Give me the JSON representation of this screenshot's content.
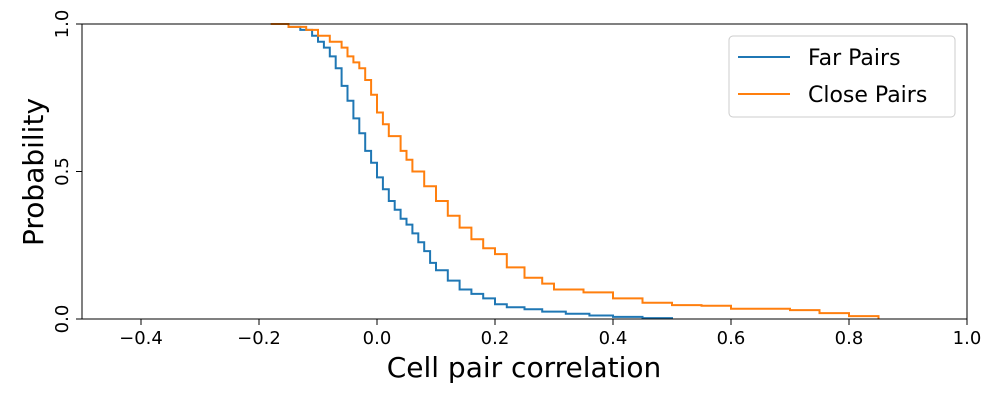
{
  "chart_data": {
    "type": "line",
    "xlabel": "Cell pair correlation",
    "ylabel": "Probability",
    "xlim": [
      -0.5,
      1.0
    ],
    "ylim": [
      0.0,
      1.0
    ],
    "xticks": [
      -0.4,
      -0.2,
      0.0,
      0.2,
      0.4,
      0.6,
      0.8,
      1.0
    ],
    "xtick_labels": [
      "−0.4",
      "−0.2",
      "0.0",
      "0.2",
      "0.4",
      "0.6",
      "0.8",
      "1.0"
    ],
    "yticks": [
      0.0,
      0.5,
      1.0
    ],
    "ytick_labels": [
      "0.0",
      "0.5",
      "1.0"
    ],
    "grid": false,
    "legend_position": "top-right",
    "series": [
      {
        "name": "Far Pairs",
        "color": "#1f77b4",
        "x": [
          -0.18,
          -0.15,
          -0.13,
          -0.11,
          -0.1,
          -0.09,
          -0.08,
          -0.07,
          -0.06,
          -0.05,
          -0.04,
          -0.03,
          -0.02,
          -0.01,
          0.0,
          0.01,
          0.02,
          0.03,
          0.04,
          0.05,
          0.06,
          0.07,
          0.08,
          0.09,
          0.1,
          0.12,
          0.14,
          0.16,
          0.18,
          0.2,
          0.22,
          0.25,
          0.28,
          0.32,
          0.36,
          0.4,
          0.45,
          0.5
        ],
        "y": [
          1.0,
          0.99,
          0.98,
          0.96,
          0.94,
          0.92,
          0.89,
          0.85,
          0.79,
          0.74,
          0.68,
          0.63,
          0.57,
          0.53,
          0.48,
          0.44,
          0.4,
          0.37,
          0.34,
          0.32,
          0.29,
          0.26,
          0.23,
          0.19,
          0.165,
          0.13,
          0.1,
          0.085,
          0.07,
          0.05,
          0.04,
          0.033,
          0.025,
          0.018,
          0.012,
          0.007,
          0.003,
          0.0
        ]
      },
      {
        "name": "Close Pairs",
        "color": "#ff7f0e",
        "x": [
          -0.18,
          -0.15,
          -0.12,
          -0.1,
          -0.08,
          -0.06,
          -0.05,
          -0.04,
          -0.03,
          -0.02,
          -0.01,
          0.0,
          0.01,
          0.02,
          0.04,
          0.05,
          0.06,
          0.08,
          0.1,
          0.12,
          0.14,
          0.16,
          0.18,
          0.2,
          0.22,
          0.25,
          0.28,
          0.3,
          0.35,
          0.4,
          0.45,
          0.5,
          0.55,
          0.6,
          0.65,
          0.7,
          0.75,
          0.8,
          0.85
        ],
        "y": [
          1.0,
          0.99,
          0.98,
          0.96,
          0.94,
          0.92,
          0.89,
          0.87,
          0.85,
          0.81,
          0.76,
          0.7,
          0.66,
          0.62,
          0.57,
          0.54,
          0.5,
          0.45,
          0.4,
          0.35,
          0.31,
          0.27,
          0.24,
          0.22,
          0.175,
          0.14,
          0.12,
          0.1,
          0.09,
          0.07,
          0.055,
          0.047,
          0.045,
          0.035,
          0.035,
          0.03,
          0.02,
          0.01,
          0.0
        ]
      }
    ]
  }
}
